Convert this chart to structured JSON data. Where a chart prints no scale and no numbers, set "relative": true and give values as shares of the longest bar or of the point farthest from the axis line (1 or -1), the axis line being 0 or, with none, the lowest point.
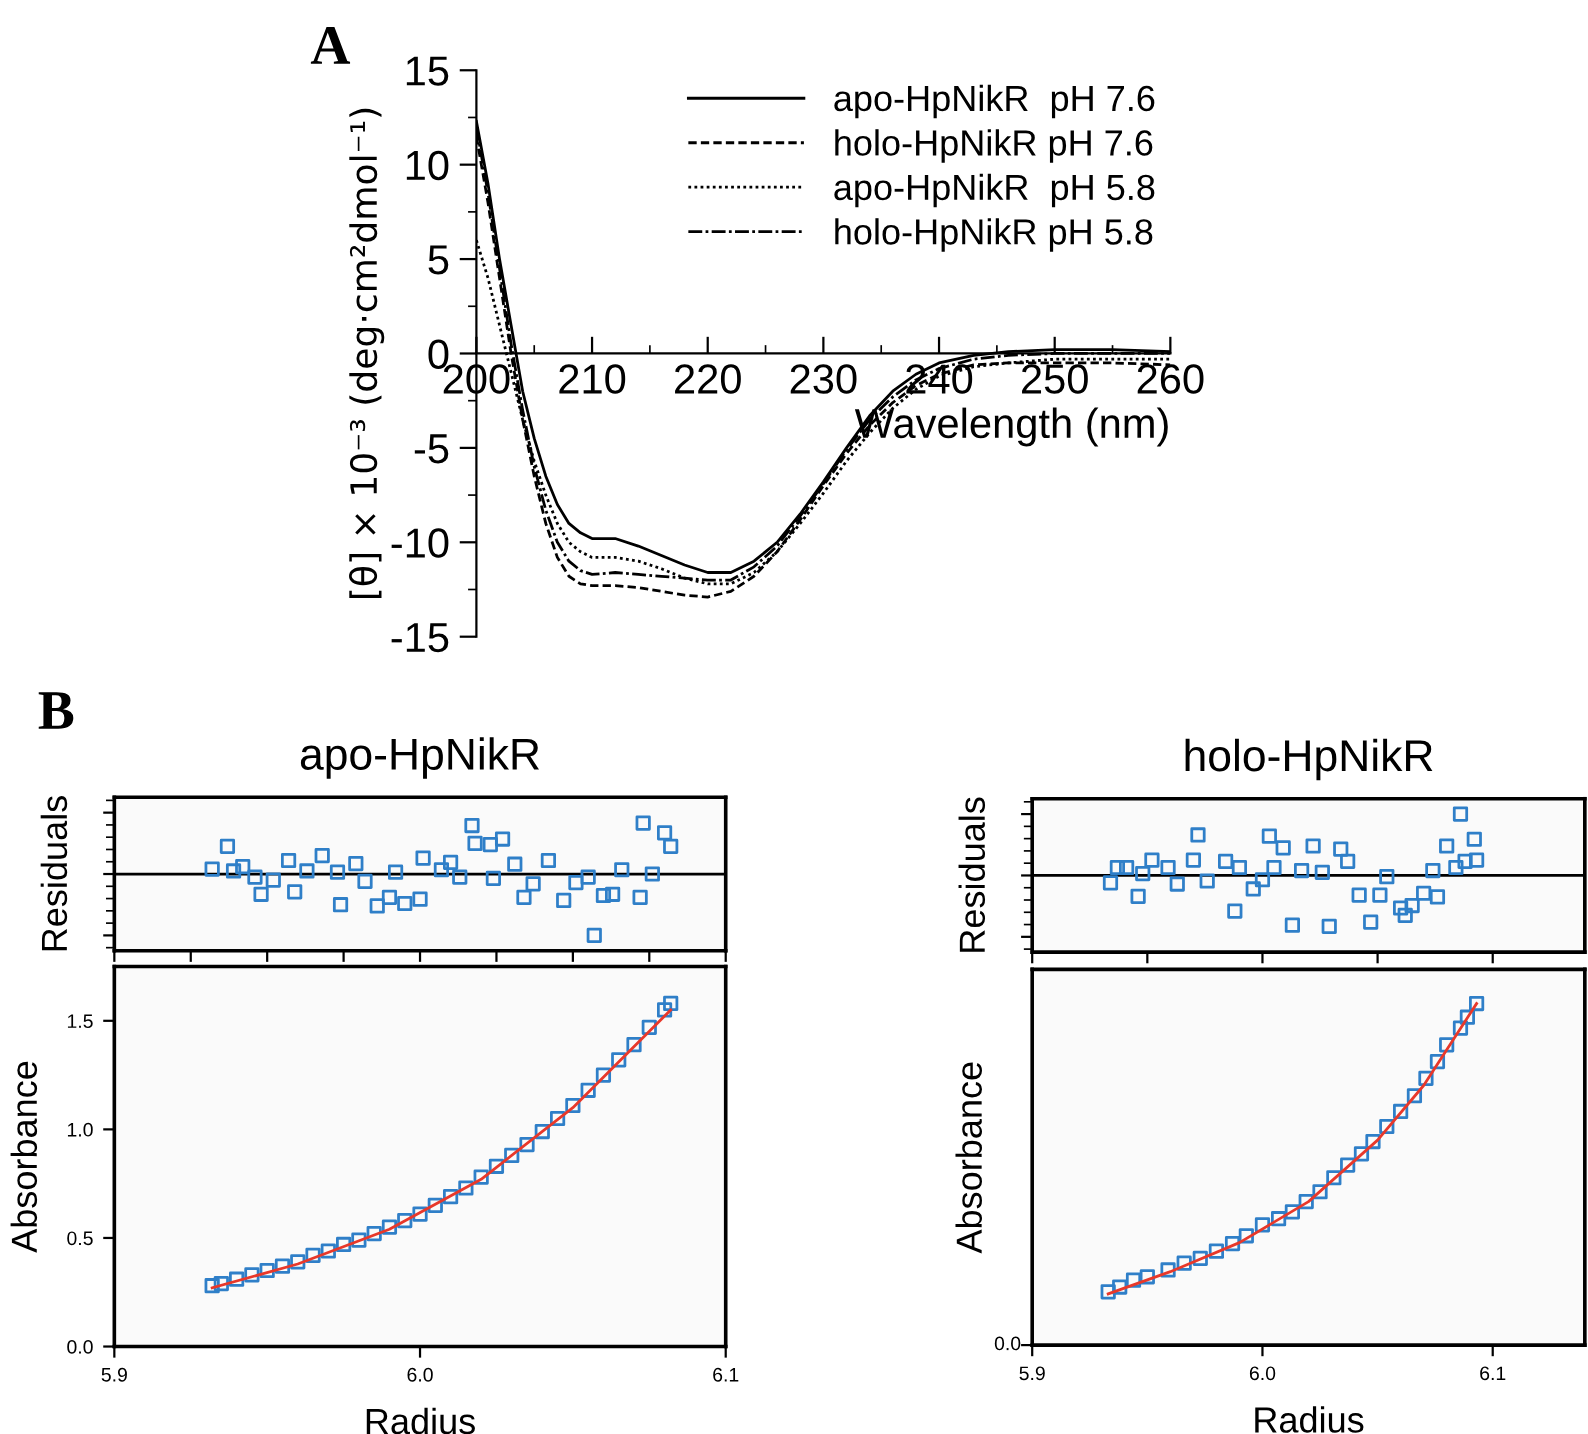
{
  "chart_data": [
    {
      "type": "line",
      "xlabel": "Wavelength (nm)",
      "ylabel": "[θ] × 10⁻³ (deg·cm²dmol⁻¹)",
      "annotations": [
        "A"
      ],
      "legend": "top right",
      "grid": false,
      "xlim": [
        200,
        260
      ],
      "xticks": [
        200,
        210,
        220,
        230,
        240,
        250,
        260
      ],
      "ylim": [
        -15,
        15
      ],
      "yticks": [
        -15,
        -10,
        -5,
        0,
        5,
        10,
        15
      ],
      "x": [
        200,
        201,
        202,
        203,
        204,
        205,
        206,
        207,
        208,
        209,
        210,
        212,
        214,
        216,
        218,
        220,
        222,
        224,
        226,
        228,
        230,
        232,
        234,
        236,
        238,
        240,
        243,
        246,
        250,
        255,
        260
      ],
      "series": [
        {
          "name": "apo-HpNikR  pH 7.6",
          "color": "#000000",
          "line_style": "solid",
          "values": [
            12.3,
            9,
            5,
            1.5,
            -2,
            -4.5,
            -6.5,
            -8,
            -9,
            -9.5,
            -9.8,
            -9.8,
            -10.2,
            -10.7,
            -11.2,
            -11.6,
            -11.6,
            -11,
            -10,
            -8.5,
            -6.8,
            -5,
            -3.3,
            -2,
            -1.1,
            -0.5,
            -0.1,
            0.1,
            0.2,
            0.2,
            0.1
          ]
        },
        {
          "name": "holo-HpNikR pH 7.6",
          "color": "#000000",
          "line_style": "dashed",
          "values": [
            11.5,
            8,
            4,
            0,
            -3.5,
            -6.5,
            -9,
            -10.8,
            -11.8,
            -12.2,
            -12.3,
            -12.3,
            -12.4,
            -12.6,
            -12.8,
            -12.9,
            -12.6,
            -11.8,
            -10.5,
            -8.8,
            -7,
            -5.3,
            -3.8,
            -2.6,
            -1.7,
            -1.1,
            -0.6,
            -0.5,
            -0.5,
            -0.5,
            -0.6
          ]
        },
        {
          "name": "apo-HpNikR  pH 5.8",
          "color": "#000000",
          "line_style": "dotted",
          "values": [
            6,
            4,
            1.5,
            -1,
            -3.5,
            -5.7,
            -7.5,
            -9,
            -10,
            -10.5,
            -10.8,
            -10.8,
            -11,
            -11.4,
            -11.9,
            -12.2,
            -12.2,
            -11.6,
            -10.5,
            -9,
            -7.4,
            -5.7,
            -4.2,
            -2.9,
            -1.9,
            -1.2,
            -0.7,
            -0.5,
            -0.3,
            -0.3,
            -0.3
          ]
        },
        {
          "name": "holo-HpNikR pH 5.8",
          "color": "#000000",
          "line_style": "dashdot",
          "values": [
            12,
            8.5,
            4.5,
            0.5,
            -3,
            -6,
            -8.3,
            -10,
            -11,
            -11.5,
            -11.7,
            -11.6,
            -11.7,
            -11.8,
            -11.9,
            -12,
            -12,
            -11.3,
            -10.2,
            -8.6,
            -6.9,
            -5.1,
            -3.5,
            -2.3,
            -1.4,
            -0.8,
            -0.3,
            -0.1,
            0,
            0,
            0
          ]
        }
      ]
    },
    {
      "type": "scatter",
      "title": "apo-HpNikR",
      "ylabel": "Residuals",
      "annotations": [
        "B"
      ],
      "relative": true,
      "tick_labels": false,
      "marker": "square",
      "xlim": [
        5.9,
        6.1
      ],
      "series": [
        {
          "color": "#2f7fc8",
          "x": [
            5.932,
            5.937,
            5.939,
            5.942,
            5.946,
            5.948,
            5.952,
            5.957,
            5.959,
            5.963,
            5.968,
            5.973,
            5.974,
            5.979,
            5.982,
            5.986,
            5.99,
            5.992,
            5.995,
            6.0,
            6.001,
            6.007,
            6.01,
            6.013,
            6.017,
            6.018,
            6.023,
            6.024,
            6.027,
            6.031,
            6.034,
            6.037,
            6.042,
            6.047,
            6.051,
            6.055,
            6.057,
            6.06,
            6.063,
            6.066,
            6.072,
            6.073,
            6.076,
            6.08,
            6.082
          ],
          "values": [
            0.08,
            0.45,
            0.05,
            0.12,
            -0.05,
            -0.33,
            -0.1,
            0.22,
            -0.29,
            0.05,
            0.3,
            0.03,
            -0.5,
            0.17,
            -0.12,
            -0.52,
            -0.38,
            0.03,
            -0.48,
            -0.41,
            0.26,
            0.07,
            0.19,
            -0.05,
            0.79,
            0.5,
            0.48,
            -0.07,
            0.57,
            0.16,
            -0.38,
            -0.16,
            0.22,
            -0.43,
            -0.14,
            -0.05,
            -1,
            -0.35,
            -0.33,
            0.07,
            -0.38,
            0.83,
            0,
            0.67,
            0.45
          ]
        }
      ]
    },
    {
      "type": "scatter",
      "xlabel": "Radius",
      "ylabel": "Absorbance",
      "xlim": [
        5.9,
        6.1
      ],
      "xticks": [
        5.9,
        {
          "value": 6.0,
          "label": "6.0"
        },
        6.1
      ],
      "ylim": [
        0,
        1.75
      ],
      "yticks": [
        {
          "value": 0,
          "label": "0.0"
        },
        0.5,
        {
          "value": 1,
          "label": "1.0"
        },
        1.5
      ],
      "series": [
        {
          "color": "#2f7fc8",
          "marker": "square",
          "x": [
            5.932,
            5.935,
            5.94,
            5.945,
            5.95,
            5.955,
            5.96,
            5.965,
            5.97,
            5.975,
            5.98,
            5.985,
            5.99,
            5.995,
            6.0,
            6.005,
            6.01,
            6.015,
            6.02,
            6.025,
            6.03,
            6.035,
            6.04,
            6.045,
            6.05,
            6.055,
            6.06,
            6.065,
            6.07,
            6.075,
            6.08,
            6.082
          ],
          "values": [
            0.28,
            0.29,
            0.31,
            0.33,
            0.35,
            0.37,
            0.39,
            0.42,
            0.44,
            0.47,
            0.49,
            0.52,
            0.55,
            0.58,
            0.61,
            0.65,
            0.69,
            0.73,
            0.78,
            0.83,
            0.88,
            0.93,
            0.99,
            1.05,
            1.11,
            1.18,
            1.25,
            1.32,
            1.39,
            1.47,
            1.55,
            1.58
          ]
        },
        {
          "type": "line",
          "color": "#e8382a",
          "x": [
            5.932,
            5.96,
            5.99,
            6.02,
            6.05,
            6.082
          ],
          "values": [
            0.27,
            0.38,
            0.54,
            0.77,
            1.1,
            1.55
          ]
        }
      ]
    },
    {
      "type": "scatter",
      "title": "holo-HpNikR",
      "ylabel": "Residuals",
      "relative": true,
      "tick_labels": false,
      "marker": "square",
      "xlim": [
        5.9,
        6.14
      ],
      "series": [
        {
          "color": "#2f7fc8",
          "x": [
            5.934,
            5.937,
            5.941,
            5.946,
            5.948,
            5.952,
            5.959,
            5.963,
            5.97,
            5.972,
            5.976,
            5.984,
            5.988,
            5.99,
            5.996,
            6.0,
            6.003,
            6.005,
            6.009,
            6.013,
            6.017,
            6.022,
            6.026,
            6.029,
            6.034,
            6.037,
            6.042,
            6.047,
            6.051,
            6.054,
            6.06,
            6.062,
            6.065,
            6.07,
            6.074,
            6.076,
            6.08,
            6.084,
            6.086,
            6.088,
            6.092,
            6.093
          ],
          "values": [
            -0.12,
            0.13,
            0.13,
            -0.34,
            0.03,
            0.25,
            0.13,
            -0.14,
            0.25,
            0.66,
            -0.09,
            0.23,
            -0.58,
            0.13,
            -0.22,
            -0.07,
            0.64,
            0.13,
            0.45,
            -0.81,
            0.08,
            0.48,
            0.05,
            -0.83,
            0.43,
            0.23,
            -0.32,
            -0.76,
            -0.32,
            -0.02,
            -0.53,
            -0.65,
            -0.49,
            -0.29,
            0.08,
            -0.35,
            0.48,
            0.13,
            1,
            0.23,
            0.59,
            0.25
          ]
        }
      ]
    },
    {
      "type": "scatter",
      "xlabel": "Radius",
      "ylabel": "Absorbance",
      "relative": true,
      "xlim": [
        5.9,
        6.14
      ],
      "xticks": [
        5.9,
        {
          "value": 6.0,
          "label": "6.0"
        },
        6.1
      ],
      "annotations": [
        "0.0"
      ],
      "series": [
        {
          "color": "#2f7fc8",
          "marker": "square",
          "x": [
            5.933,
            5.938,
            5.944,
            5.95,
            5.959,
            5.966,
            5.973,
            5.98,
            5.987,
            5.993,
            6.0,
            6.007,
            6.013,
            6.019,
            6.025,
            6.031,
            6.037,
            6.043,
            6.048,
            6.054,
            6.06,
            6.066,
            6.071,
            6.076,
            6.08,
            6.086,
            6.089,
            6.093
          ],
          "values": [
            0.156,
            0.17,
            0.19,
            0.2,
            0.22,
            0.24,
            0.254,
            0.275,
            0.297,
            0.32,
            0.352,
            0.37,
            0.39,
            0.42,
            0.449,
            0.49,
            0.527,
            0.56,
            0.596,
            0.64,
            0.684,
            0.73,
            0.781,
            0.83,
            0.879,
            0.928,
            0.96,
            1.0
          ]
        },
        {
          "type": "line",
          "color": "#e8382a",
          "x": [
            5.933,
            5.96,
            5.99,
            6.02,
            6.05,
            6.07,
            6.093
          ],
          "values": [
            0.15,
            0.215,
            0.3,
            0.42,
            0.6,
            0.76,
            1.0
          ]
        }
      ]
    }
  ]
}
